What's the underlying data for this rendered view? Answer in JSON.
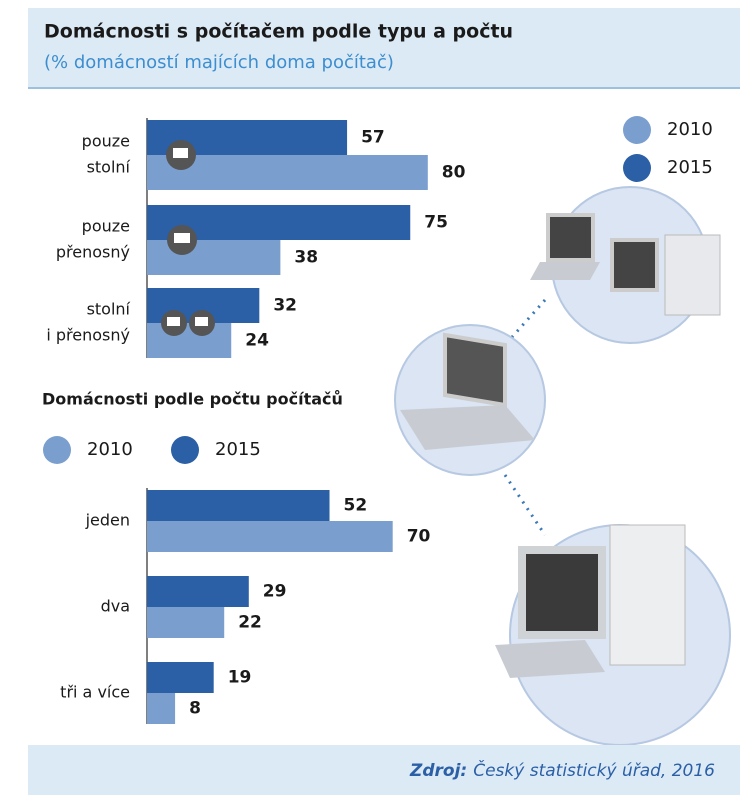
{
  "header": {
    "title": "Domácnosti s počítačem podle typu a počtu",
    "subtitle": "(% domácností majících doma počítač)"
  },
  "chart_data": [
    {
      "type": "bar",
      "orientation": "horizontal",
      "categories": [
        [
          "pouze",
          "stolní"
        ],
        [
          "pouze",
          "přenosný"
        ],
        [
          "stolní",
          "i přenosný"
        ]
      ],
      "series": [
        {
          "name": "2010",
          "color": "#7a9fcf",
          "values": [
            80,
            38,
            24
          ]
        },
        {
          "name": "2015",
          "color": "#2b5fa6",
          "values": [
            57,
            75,
            32
          ]
        }
      ],
      "legend": "top-right"
    },
    {
      "type": "bar",
      "orientation": "horizontal",
      "title": "Domácnosti podle počtu počítačů",
      "categories": [
        [
          "jeden"
        ],
        [
          "dva"
        ],
        [
          "tři a více"
        ]
      ],
      "series": [
        {
          "name": "2010",
          "color": "#7a9fcf",
          "values": [
            70,
            22,
            8
          ]
        },
        {
          "name": "2015",
          "color": "#2b5fa6",
          "values": [
            52,
            29,
            19
          ]
        }
      ],
      "legend": "top-left"
    }
  ],
  "source": {
    "label": "Zdroj:",
    "text": "Český statistický úřad, 2016"
  }
}
